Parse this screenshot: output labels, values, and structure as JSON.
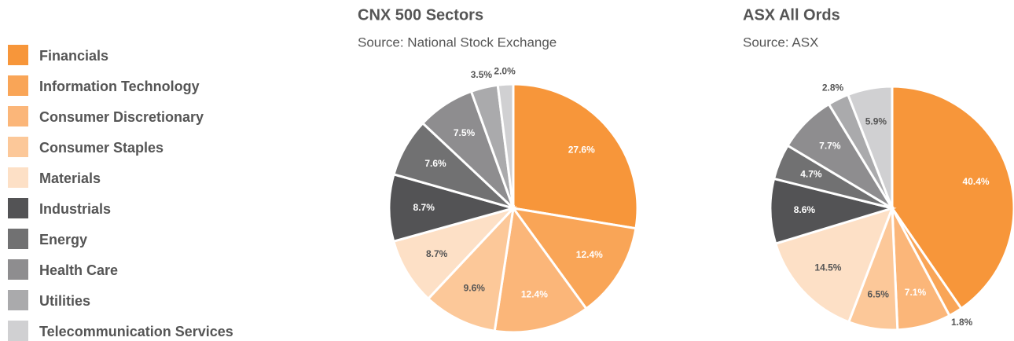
{
  "legend": {
    "categories": [
      "Financials",
      "Information Technology",
      "Consumer Discretionary",
      "Consumer Staples",
      "Materials",
      "Industrials",
      "Energy",
      "Health Care",
      "Utilities",
      "Telecommunication Services"
    ],
    "colors": [
      "#f7963a",
      "#f9a557",
      "#fbb679",
      "#fcc899",
      "#fde0c6",
      "#535355",
      "#717172",
      "#8e8d8f",
      "#aaaaac",
      "#d0d0d2"
    ]
  },
  "chart_data": [
    {
      "type": "pie",
      "title": "CNX 500 Sectors",
      "subtitle": "Source: National Stock Exchange",
      "values": [
        27.6,
        12.4,
        12.4,
        9.6,
        8.7,
        8.7,
        7.6,
        7.5,
        3.5,
        2.0
      ],
      "value_labels": [
        "27.6%",
        "12.4%",
        "12.4%",
        "9.6%",
        "8.7%",
        "8.7%",
        "7.6%",
        "7.5%",
        "3.5%",
        "2.0%"
      ]
    },
    {
      "type": "pie",
      "title": "ASX All Ords",
      "subtitle": "Source: ASX",
      "values": [
        40.4,
        1.8,
        7.1,
        6.5,
        14.5,
        8.6,
        4.7,
        7.7,
        2.8,
        5.9
      ],
      "value_labels": [
        "40.4%",
        "1.8%",
        "7.1%",
        "6.5%",
        "14.5%",
        "8.6%",
        "4.7%",
        "7.7%",
        "2.8%",
        "5.9%"
      ]
    }
  ]
}
